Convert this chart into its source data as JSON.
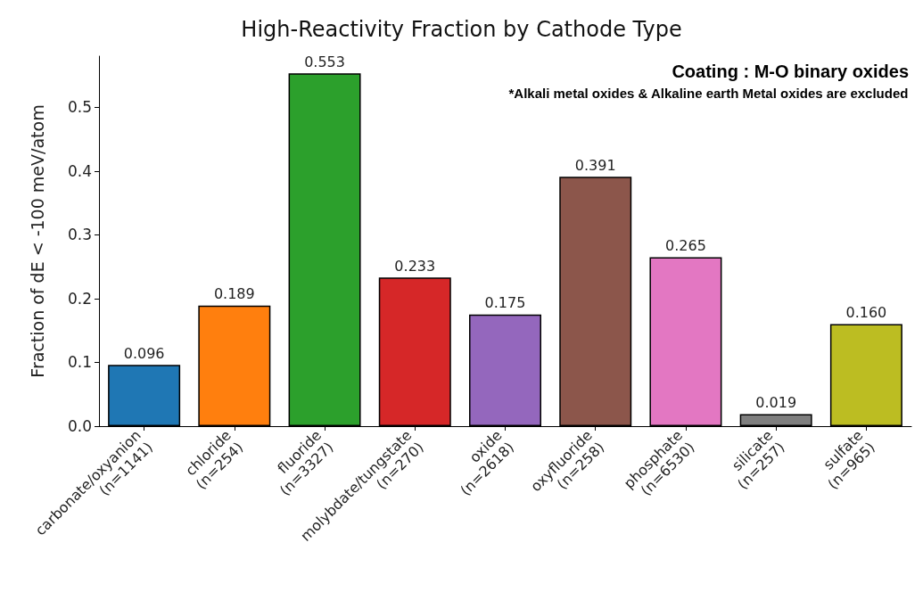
{
  "chart_data": {
    "type": "bar",
    "title": "High-Reactivity Fraction by Cathode Type",
    "ylabel": "Fraction of dE < -100 meV/atom",
    "categories": [
      "carbonate/oxyanion\n(n=1141)",
      "chloride\n(n=254)",
      "fluoride\n(n=3327)",
      "molybdate/tungstate\n(n=270)",
      "oxide\n(n=2618)",
      "oxyfluoride\n(n=258)",
      "phosphate\n(n=6530)",
      "silicate\n(n=257)",
      "sulfate\n(n=965)"
    ],
    "values": [
      0.096,
      0.189,
      0.553,
      0.233,
      0.175,
      0.391,
      0.265,
      0.019,
      0.16
    ],
    "value_labels": [
      "0.096",
      "0.189",
      "0.553",
      "0.233",
      "0.175",
      "0.391",
      "0.265",
      "0.019",
      "0.160"
    ],
    "colors": [
      "#1f77b4",
      "#ff7f0e",
      "#2ca02c",
      "#d62728",
      "#9467bd",
      "#8c564b",
      "#e377c2",
      "#7f7f7f",
      "#bcbd22"
    ],
    "ylim": [
      0,
      0.58
    ],
    "yticks": [
      {
        "value": 0,
        "label": "0.0"
      },
      {
        "value": 0.1,
        "label": "0.1"
      },
      {
        "value": 0.2,
        "label": "0.2"
      },
      {
        "value": 0.3,
        "label": "0.3"
      },
      {
        "value": 0.4,
        "label": "0.4"
      },
      {
        "value": 0.5,
        "label": "0.5"
      }
    ],
    "annotations": [
      "Coating : M-O binary oxides",
      "*Alkali metal oxides & Alkaline earth Metal oxides are excluded"
    ],
    "grid": false
  }
}
